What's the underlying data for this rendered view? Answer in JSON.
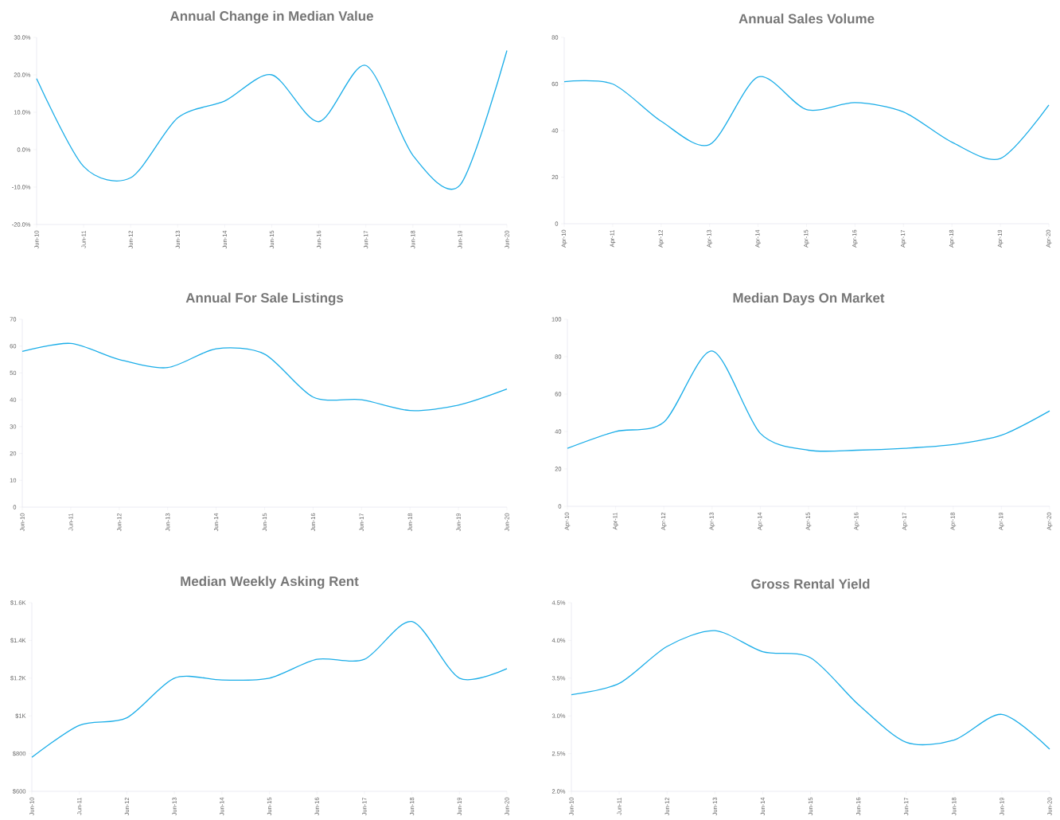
{
  "chart_data": [
    {
      "type": "line",
      "title": "Annual Change in Median Value",
      "color": "#1aade8",
      "categories": [
        "Jun-10",
        "Jun-11",
        "Jun-12",
        "Jun-13",
        "Jun-14",
        "Jun-15",
        "Jun-16",
        "Jun-17",
        "Jun-18",
        "Jun-19",
        "Jun-20"
      ],
      "values": [
        19,
        -4.5,
        -7.5,
        8.5,
        13,
        20,
        7.5,
        22.5,
        -1.5,
        -9.5,
        26.5
      ],
      "ylim": [
        -20,
        30
      ],
      "yticks": [
        {
          "value": -20,
          "label": "-20.0%"
        },
        {
          "value": -10,
          "label": "-10.0%"
        },
        {
          "value": 0,
          "label": "0.0%"
        },
        {
          "value": 10,
          "label": "10.0%"
        },
        {
          "value": 20,
          "label": "20.0%"
        },
        {
          "value": 30,
          "label": "30.0%"
        }
      ]
    },
    {
      "type": "line",
      "title": "Annual Sales Volume",
      "color": "#1aade8",
      "categories": [
        "Apr-10",
        "Apr-11",
        "Apr-12",
        "Apr-13",
        "Apr-14",
        "Apr-15",
        "Apr-16",
        "Apr-17",
        "Apr-18",
        "Apr-19",
        "Apr-20"
      ],
      "values": [
        61,
        60,
        44,
        34,
        63,
        49,
        52,
        48,
        35,
        28,
        51
      ],
      "ylim": [
        0,
        80
      ],
      "yticks": [
        0,
        20,
        40,
        60,
        80
      ]
    },
    {
      "type": "line",
      "title": "Annual For Sale Listings",
      "color": "#1aade8",
      "categories": [
        "Jun-10",
        "Jun-11",
        "Jun-12",
        "Jun-13",
        "Jun-14",
        "Jun-15",
        "Jun-16",
        "Jun-17",
        "Jun-18",
        "Jun-19",
        "Jun-20"
      ],
      "values": [
        58,
        61,
        55,
        52,
        59,
        57,
        41,
        40,
        36,
        38,
        44
      ],
      "ylim": [
        0,
        70
      ],
      "yticks": [
        0,
        10,
        20,
        30,
        40,
        50,
        60,
        70
      ]
    },
    {
      "type": "line",
      "title": "Median Days On Market",
      "color": "#1aade8",
      "categories": [
        "Apr-10",
        "Apr-11",
        "Apr-12",
        "Apr-13",
        "Apr-14",
        "Apr-15",
        "Apr-16",
        "Apr-17",
        "Apr-18",
        "Apr-19",
        "Apr-20"
      ],
      "values": [
        31,
        40,
        45,
        83,
        39,
        30,
        30,
        31,
        33,
        38,
        51
      ],
      "ylim": [
        0,
        100
      ],
      "yticks": [
        0,
        20,
        40,
        60,
        80,
        100
      ]
    },
    {
      "type": "line",
      "title": "Median Weekly Asking Rent",
      "color": "#1aade8",
      "categories": [
        "Jun-10",
        "Jun-11",
        "Jun-12",
        "Jun-13",
        "Jun-14",
        "Jun-15",
        "Jun-16",
        "Jun-17",
        "Jun-18",
        "Jun-19",
        "Jun-20"
      ],
      "values": [
        780,
        950,
        990,
        1200,
        1190,
        1200,
        1300,
        1300,
        1500,
        1200,
        1250
      ],
      "ylim": [
        600,
        1600
      ],
      "yticks": [
        {
          "value": 600,
          "label": "$600"
        },
        {
          "value": 800,
          "label": "$800"
        },
        {
          "value": 1000,
          "label": "$1K"
        },
        {
          "value": 1200,
          "label": "$1.2K"
        },
        {
          "value": 1400,
          "label": "$1.4K"
        },
        {
          "value": 1600,
          "label": "$1.6K"
        }
      ]
    },
    {
      "type": "line",
      "title": "Gross Rental Yield",
      "color": "#1aade8",
      "categories": [
        "Jun-10",
        "Jun-11",
        "Jun-12",
        "Jun-13",
        "Jun-14",
        "Jun-15",
        "Jun-16",
        "Jun-17",
        "Jun-18",
        "Jun-19",
        "Jun-20"
      ],
      "values": [
        3.28,
        3.43,
        3.92,
        4.13,
        3.85,
        3.77,
        3.15,
        2.65,
        2.68,
        3.02,
        2.56
      ],
      "ylim": [
        2,
        4.5
      ],
      "yticks": [
        {
          "value": 2,
          "label": "2.0%"
        },
        {
          "value": 2.5,
          "label": "2.5%"
        },
        {
          "value": 3,
          "label": "3.0%"
        },
        {
          "value": 3.5,
          "label": "3.5%"
        },
        {
          "value": 4,
          "label": "4.0%"
        },
        {
          "value": 4.5,
          "label": "4.5%"
        }
      ]
    }
  ]
}
